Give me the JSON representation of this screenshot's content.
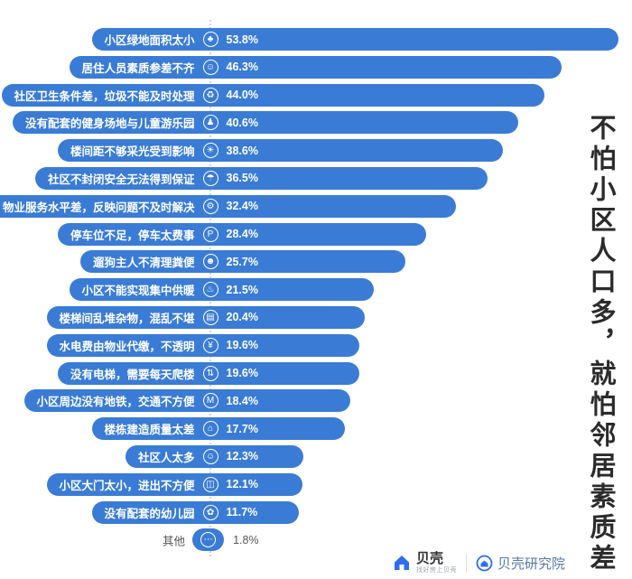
{
  "chart_data": {
    "type": "bar",
    "orientation": "horizontal",
    "title": "不怕小区人口多，就怕邻居素质差",
    "value_unit": "%",
    "xlim": [
      0,
      55
    ],
    "bar_color": "#3a7cd5",
    "legend": "none",
    "grid": "off",
    "categories": [
      "小区绿地面积太小",
      "居住人员素质参差不齐",
      "社区卫生条件差，垃圾不能及时处理",
      "没有配套的健身场地与儿童游乐园",
      "楼间距不够采光受到影响",
      "社区不封闭安全无法得到保证",
      "物业服务水平差，反映问题不及时解决",
      "停车位不足，停车太费事",
      "遛狗主人不清理粪便",
      "小区不能实现集中供暖",
      "楼梯间乱堆杂物，混乱不堪",
      "水电费由物业代缴，不透明",
      "没有电梯，需要每天爬楼",
      "小区周边没有地铁，交通不方便",
      "楼栋建造质量太差",
      "社区人太多",
      "小区大门太小，进出不方便",
      "没有配套的幼儿园",
      "其他"
    ],
    "values": [
      53.8,
      46.3,
      44.0,
      40.6,
      38.6,
      36.5,
      32.4,
      28.4,
      25.7,
      21.5,
      20.4,
      19.6,
      19.6,
      18.4,
      17.7,
      12.3,
      12.1,
      11.7,
      1.8
    ],
    "value_labels": [
      "53.8%",
      "46.3%",
      "44.0%",
      "40.6%",
      "38.6%",
      "36.5%",
      "32.4%",
      "28.4%",
      "25.7%",
      "21.5%",
      "20.4%",
      "19.6%",
      "19.6%",
      "18.4%",
      "17.7%",
      "12.3%",
      "12.1%",
      "11.7%",
      "1.8%"
    ],
    "icon_names": [
      "tree-icon",
      "person-icon",
      "trash-icon",
      "playground-icon",
      "sunlight-icon",
      "shield-icon",
      "wrench-icon",
      "car-icon",
      "dog-icon",
      "heating-icon",
      "clutter-icon",
      "utility-fee-icon",
      "elevator-icon",
      "metro-icon",
      "building-icon",
      "crowd-icon",
      "gate-icon",
      "kindergarten-icon",
      "ellipsis-icon"
    ],
    "icon_glyphs": [
      "♣",
      "☺",
      "♻",
      "♟",
      "☀",
      "☂",
      "⚙",
      "P",
      "☻",
      "♨",
      "▤",
      "¥",
      "⇅",
      "M",
      "⌂",
      "☺",
      "◫",
      "✿",
      "⋯"
    ]
  },
  "footer": {
    "brand": {
      "name": "贝壳",
      "tagline": "找好房上贝壳"
    },
    "institute": {
      "name": "贝壳研究院"
    }
  }
}
